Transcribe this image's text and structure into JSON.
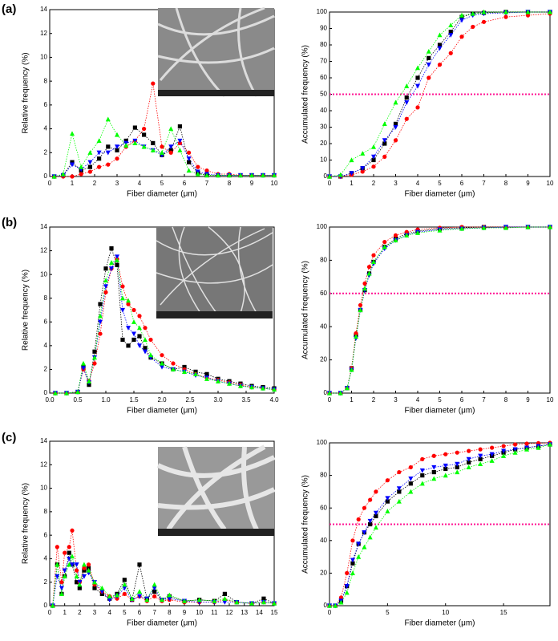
{
  "panel_labels": [
    "(a)",
    "(b)",
    "(c)"
  ],
  "chart_data": [
    {
      "type": "line",
      "xlabel": "Fiber diameter (μm)",
      "ylabel": "Relative frequency (%)",
      "x": [
        0.2,
        0.6,
        1.0,
        1.4,
        1.8,
        2.2,
        2.6,
        3.0,
        3.4,
        3.8,
        4.2,
        4.6,
        5.0,
        5.4,
        5.8,
        6.2,
        6.6,
        7.0,
        7.5,
        8,
        8.5,
        9,
        9.5,
        10
      ],
      "series": [
        {
          "color": "#000000",
          "marker": "square",
          "values": [
            0,
            0.1,
            1.2,
            0.5,
            0.8,
            1.5,
            2.5,
            2.2,
            3.0,
            4.1,
            3.5,
            2.8,
            1.8,
            2.2,
            4.2,
            1.2,
            0.3,
            0.1,
            0.1,
            0.1,
            0.1,
            0.1,
            0.1,
            0.1
          ]
        },
        {
          "color": "#ff0000",
          "marker": "circle",
          "values": [
            0,
            0,
            0,
            0.2,
            0.4,
            0.8,
            1.0,
            1.5,
            2.5,
            3.0,
            4.0,
            7.8,
            2.5,
            2.0,
            2.8,
            2.0,
            0.8,
            0.5,
            0.2,
            0.2,
            0.1,
            0.1,
            0.1,
            0.1
          ]
        },
        {
          "color": "#0000ff",
          "marker": "triangle-down",
          "values": [
            0,
            0.1,
            1.0,
            0.6,
            1.2,
            2.0,
            2.0,
            2.5,
            2.8,
            3.0,
            2.5,
            2.2,
            1.8,
            2.5,
            3.0,
            1.5,
            0.4,
            0.2,
            0.1,
            0.1,
            0.1,
            0.1,
            0.1,
            0.1
          ]
        },
        {
          "color": "#00ff00",
          "marker": "triangle-up",
          "values": [
            0,
            0.2,
            3.6,
            0.8,
            2.0,
            3.0,
            4.8,
            3.5,
            2.6,
            2.8,
            2.5,
            2.2,
            2.0,
            4.0,
            2.2,
            0.5,
            0.2,
            0.1,
            0.1,
            0.1,
            0.1,
            0.1,
            0.1,
            0.1
          ]
        }
      ],
      "xlim": [
        0,
        10
      ],
      "xticks": [
        0,
        1,
        2,
        3,
        4,
        5,
        6,
        7,
        8,
        9,
        10
      ],
      "ylim": [
        0,
        14
      ],
      "yticks": [
        0,
        2,
        4,
        6,
        8,
        10,
        12,
        14
      ]
    },
    {
      "type": "line",
      "xlabel": "Fiber diameter (μm)",
      "ylabel": "Accumulated frequency (%)",
      "x": [
        0,
        0.5,
        1,
        1.5,
        2,
        2.5,
        3,
        3.5,
        4,
        4.5,
        5,
        5.5,
        6,
        6.5,
        7,
        8,
        9,
        10
      ],
      "series": [
        {
          "color": "#000000",
          "marker": "square",
          "values": [
            0,
            0,
            2,
            5,
            10,
            20,
            32,
            48,
            60,
            72,
            80,
            88,
            97,
            99,
            99.5,
            100,
            100,
            100
          ]
        },
        {
          "color": "#ff0000",
          "marker": "circle",
          "values": [
            0,
            0,
            1,
            3,
            6,
            12,
            22,
            35,
            42,
            60,
            68,
            75,
            85,
            91,
            94,
            97,
            98,
            99
          ]
        },
        {
          "color": "#0000ff",
          "marker": "triangle-down",
          "values": [
            0,
            0,
            2,
            5,
            12,
            22,
            30,
            45,
            55,
            68,
            78,
            86,
            95,
            98,
            99,
            99.5,
            100,
            100
          ]
        },
        {
          "color": "#00ff00",
          "marker": "triangle-up",
          "values": [
            0,
            1,
            10,
            14,
            18,
            32,
            45,
            55,
            66,
            76,
            86,
            92,
            98,
            99,
            100,
            100,
            100,
            100
          ]
        }
      ],
      "hline": 50,
      "hline_color": "#ff1493",
      "xlim": [
        0,
        10
      ],
      "xticks": [
        0,
        1,
        2,
        3,
        4,
        5,
        6,
        7,
        8,
        9,
        10
      ],
      "ylim": [
        0,
        100
      ],
      "yticks": [
        0,
        10,
        20,
        30,
        40,
        50,
        60,
        70,
        80,
        90,
        100
      ]
    },
    {
      "type": "line",
      "xlabel": "Fiber diameter (μm)",
      "ylabel": "Relative frequency (%)",
      "x": [
        0.1,
        0.3,
        0.5,
        0.6,
        0.7,
        0.8,
        0.9,
        1.0,
        1.1,
        1.2,
        1.3,
        1.4,
        1.5,
        1.6,
        1.7,
        1.8,
        2.0,
        2.2,
        2.4,
        2.6,
        2.8,
        3.0,
        3.2,
        3.4,
        3.6,
        3.8,
        4.0
      ],
      "series": [
        {
          "color": "#000000",
          "marker": "square",
          "values": [
            0,
            0,
            0.1,
            2.2,
            0.7,
            3.5,
            7.5,
            10.5,
            12.2,
            10.8,
            4.5,
            4.0,
            4.5,
            4.8,
            3.8,
            3.0,
            2.5,
            2.0,
            2.2,
            1.8,
            1.6,
            1.2,
            1.0,
            0.8,
            0.6,
            0.5,
            0.4
          ]
        },
        {
          "color": "#ff0000",
          "marker": "circle",
          "values": [
            0,
            0,
            0.1,
            2.0,
            1.0,
            2.5,
            5.0,
            8.5,
            10.5,
            11.3,
            9.0,
            7.5,
            7.0,
            6.5,
            5.5,
            4.5,
            3.2,
            2.5,
            2.0,
            1.6,
            1.3,
            1.1,
            0.9,
            0.7,
            0.5,
            0.4,
            0.3
          ]
        },
        {
          "color": "#0000ff",
          "marker": "triangle-down",
          "values": [
            0,
            0,
            0.1,
            2.1,
            0.9,
            3.0,
            6.0,
            9.0,
            10.5,
            11.5,
            7.0,
            5.5,
            5.0,
            4.0,
            3.5,
            3.0,
            2.2,
            2.0,
            1.8,
            1.5,
            1.3,
            1.0,
            0.8,
            0.6,
            0.5,
            0.4,
            0.3
          ]
        },
        {
          "color": "#00ff00",
          "marker": "triangle-up",
          "values": [
            0,
            0,
            0.1,
            2.5,
            1.0,
            3.0,
            6.5,
            9.5,
            11.0,
            11.2,
            8.0,
            7.8,
            6.0,
            5.5,
            4.5,
            3.2,
            2.5,
            2.0,
            1.8,
            1.6,
            1.2,
            1.0,
            0.8,
            0.6,
            0.5,
            0.4,
            0.3
          ]
        }
      ],
      "xlim": [
        0,
        4
      ],
      "xticks": [
        {
          "value": 0,
          "label": "0.0"
        },
        {
          "value": 0.5,
          "label": "0.5"
        },
        {
          "value": 1,
          "label": "1.0"
        },
        {
          "value": 1.5,
          "label": "1.5"
        },
        {
          "value": 2,
          "label": "2.0"
        },
        {
          "value": 2.5,
          "label": "2.5"
        },
        {
          "value": 3,
          "label": "3.0"
        },
        {
          "value": 3.5,
          "label": "3.5"
        },
        {
          "value": 4,
          "label": "4.0"
        }
      ],
      "ylim": [
        0,
        14
      ],
      "yticks": [
        0,
        2,
        4,
        6,
        8,
        10,
        12,
        14
      ]
    },
    {
      "type": "line",
      "xlabel": "Fiber diameter (μm)",
      "ylabel": "Accumulated frequency (%)",
      "x": [
        0,
        0.5,
        0.8,
        1.0,
        1.2,
        1.4,
        1.6,
        1.8,
        2.0,
        2.5,
        3,
        3.5,
        4,
        5,
        6,
        7,
        8,
        9,
        10
      ],
      "series": [
        {
          "color": "#000000",
          "marker": "square",
          "values": [
            0,
            0,
            3,
            15,
            35,
            50,
            62,
            72,
            79,
            88,
            93,
            96,
            97.5,
            99,
            99.5,
            100,
            100,
            100,
            100
          ]
        },
        {
          "color": "#ff0000",
          "marker": "circle",
          "values": [
            0,
            0,
            3,
            15,
            36,
            53,
            66,
            76,
            83,
            91,
            95,
            97,
            98.5,
            99.5,
            100,
            100,
            100,
            100,
            100
          ]
        },
        {
          "color": "#0000ff",
          "marker": "triangle-down",
          "values": [
            0,
            0,
            3,
            14,
            33,
            50,
            62,
            71,
            78,
            87,
            92,
            95,
            97,
            98.5,
            99,
            99.5,
            100,
            100,
            100
          ]
        },
        {
          "color": "#00ff00",
          "marker": "triangle-up",
          "values": [
            0,
            0,
            3,
            14,
            34,
            50,
            63,
            72,
            79,
            88,
            92,
            95,
            96.5,
            98,
            99,
            99.5,
            99.5,
            100,
            100
          ]
        }
      ],
      "hline": 60,
      "hline_color": "#ff1493",
      "xlim": [
        0,
        10
      ],
      "xticks": [
        0,
        1,
        2,
        3,
        4,
        5,
        6,
        7,
        8,
        9,
        10
      ],
      "ylim": [
        0,
        100
      ],
      "yticks": [
        0,
        20,
        40,
        60,
        80,
        100
      ]
    },
    {
      "type": "line",
      "xlabel": "Fiber diameter (μm)",
      "ylabel": "Relative frequency (%)",
      "x": [
        0.2,
        0.5,
        0.8,
        1.0,
        1.3,
        1.5,
        1.8,
        2.0,
        2.3,
        2.6,
        3.0,
        3.5,
        4,
        4.5,
        5,
        5.5,
        6,
        6.5,
        7,
        7.5,
        8,
        9,
        10,
        11,
        11.7,
        12.5,
        13.5,
        14.3,
        15
      ],
      "series": [
        {
          "color": "#000000",
          "marker": "square",
          "values": [
            0,
            3.5,
            1,
            2.5,
            4.5,
            3.5,
            2,
            1.5,
            3,
            3.2,
            1.5,
            1.0,
            0.6,
            1.0,
            2.2,
            0.5,
            3.5,
            0.6,
            1.2,
            0.5,
            0.8,
            0.4,
            0.5,
            0.4,
            1.0,
            0.3,
            0.2,
            0.6,
            0.2
          ]
        },
        {
          "color": "#ff0000",
          "marker": "circle",
          "values": [
            0,
            5.0,
            2,
            4.5,
            5.0,
            6.4,
            3,
            2,
            3.2,
            3.5,
            1.8,
            1.2,
            0.8,
            0.6,
            1.0,
            0.5,
            0.8,
            0.4,
            0.8,
            0.4,
            0.5,
            0.3,
            0.3,
            0.3,
            0.5,
            0.3,
            0.2,
            0.3,
            0.2
          ]
        },
        {
          "color": "#0000ff",
          "marker": "triangle-down",
          "values": [
            0,
            2.5,
            1.5,
            3.0,
            4.0,
            3.5,
            3.5,
            2.0,
            2.5,
            2.8,
            2.0,
            1.2,
            0.5,
            0.8,
            1.5,
            0.5,
            0.8,
            0.6,
            1.5,
            0.5,
            0.6,
            0.4,
            0.3,
            0.3,
            0.3,
            0.3,
            0.2,
            0.3,
            0.2
          ]
        },
        {
          "color": "#00ff00",
          "marker": "triangle-up",
          "values": [
            0,
            3.5,
            1.0,
            2.5,
            3.5,
            4.2,
            2.5,
            1.8,
            3.5,
            3.0,
            2.0,
            1.5,
            0.8,
            0.9,
            1.8,
            0.6,
            1.2,
            0.5,
            1.8,
            0.5,
            0.9,
            0.4,
            0.5,
            0.4,
            0.6,
            0.3,
            0.2,
            0.3,
            0.2
          ]
        }
      ],
      "xlim": [
        0,
        15
      ],
      "xticks": [
        0,
        1,
        2,
        3,
        4,
        5,
        6,
        7,
        8,
        9,
        10,
        11,
        12,
        13,
        14,
        15
      ],
      "ylim": [
        0,
        14
      ],
      "yticks": [
        0,
        2,
        4,
        6,
        8,
        10,
        12,
        14
      ]
    },
    {
      "type": "line",
      "xlabel": "Fiber diameter (μm)",
      "ylabel": "Accumulated frequency (%)",
      "x": [
        0,
        0.5,
        1,
        1.5,
        2,
        2.5,
        3,
        3.5,
        4,
        5,
        6,
        7,
        8,
        9,
        10,
        11,
        12,
        13,
        14,
        15,
        16,
        17,
        18,
        19
      ],
      "series": [
        {
          "color": "#000000",
          "marker": "square",
          "values": [
            0,
            0,
            3,
            12,
            26,
            38,
            45,
            50,
            55,
            64,
            70,
            75,
            80,
            82,
            84,
            85,
            88,
            90,
            92,
            94,
            96,
            97,
            98,
            99
          ]
        },
        {
          "color": "#ff0000",
          "marker": "circle",
          "values": [
            0,
            0,
            5,
            20,
            40,
            53,
            60,
            65,
            70,
            77,
            82,
            85,
            90,
            92,
            93,
            94,
            95,
            96,
            97,
            98,
            99,
            99.5,
            99.8,
            100
          ]
        },
        {
          "color": "#0000ff",
          "marker": "triangle-down",
          "values": [
            0,
            0,
            3,
            12,
            28,
            38,
            45,
            52,
            57,
            66,
            72,
            78,
            83,
            85,
            86,
            87,
            90,
            92,
            93,
            95,
            96,
            97,
            98,
            99
          ]
        },
        {
          "color": "#00ff00",
          "marker": "triangle-up",
          "values": [
            0,
            0,
            2,
            8,
            20,
            30,
            36,
            42,
            48,
            58,
            64,
            70,
            75,
            78,
            80,
            82,
            85,
            87,
            89,
            92,
            94,
            96,
            97,
            99
          ]
        }
      ],
      "hline": 50,
      "hline_color": "#ff1493",
      "xlim": [
        0,
        19
      ],
      "xticks": [
        0,
        5,
        10,
        15
      ],
      "ylim": [
        0,
        100
      ],
      "yticks": [
        0,
        20,
        40,
        60,
        80,
        100
      ]
    }
  ]
}
